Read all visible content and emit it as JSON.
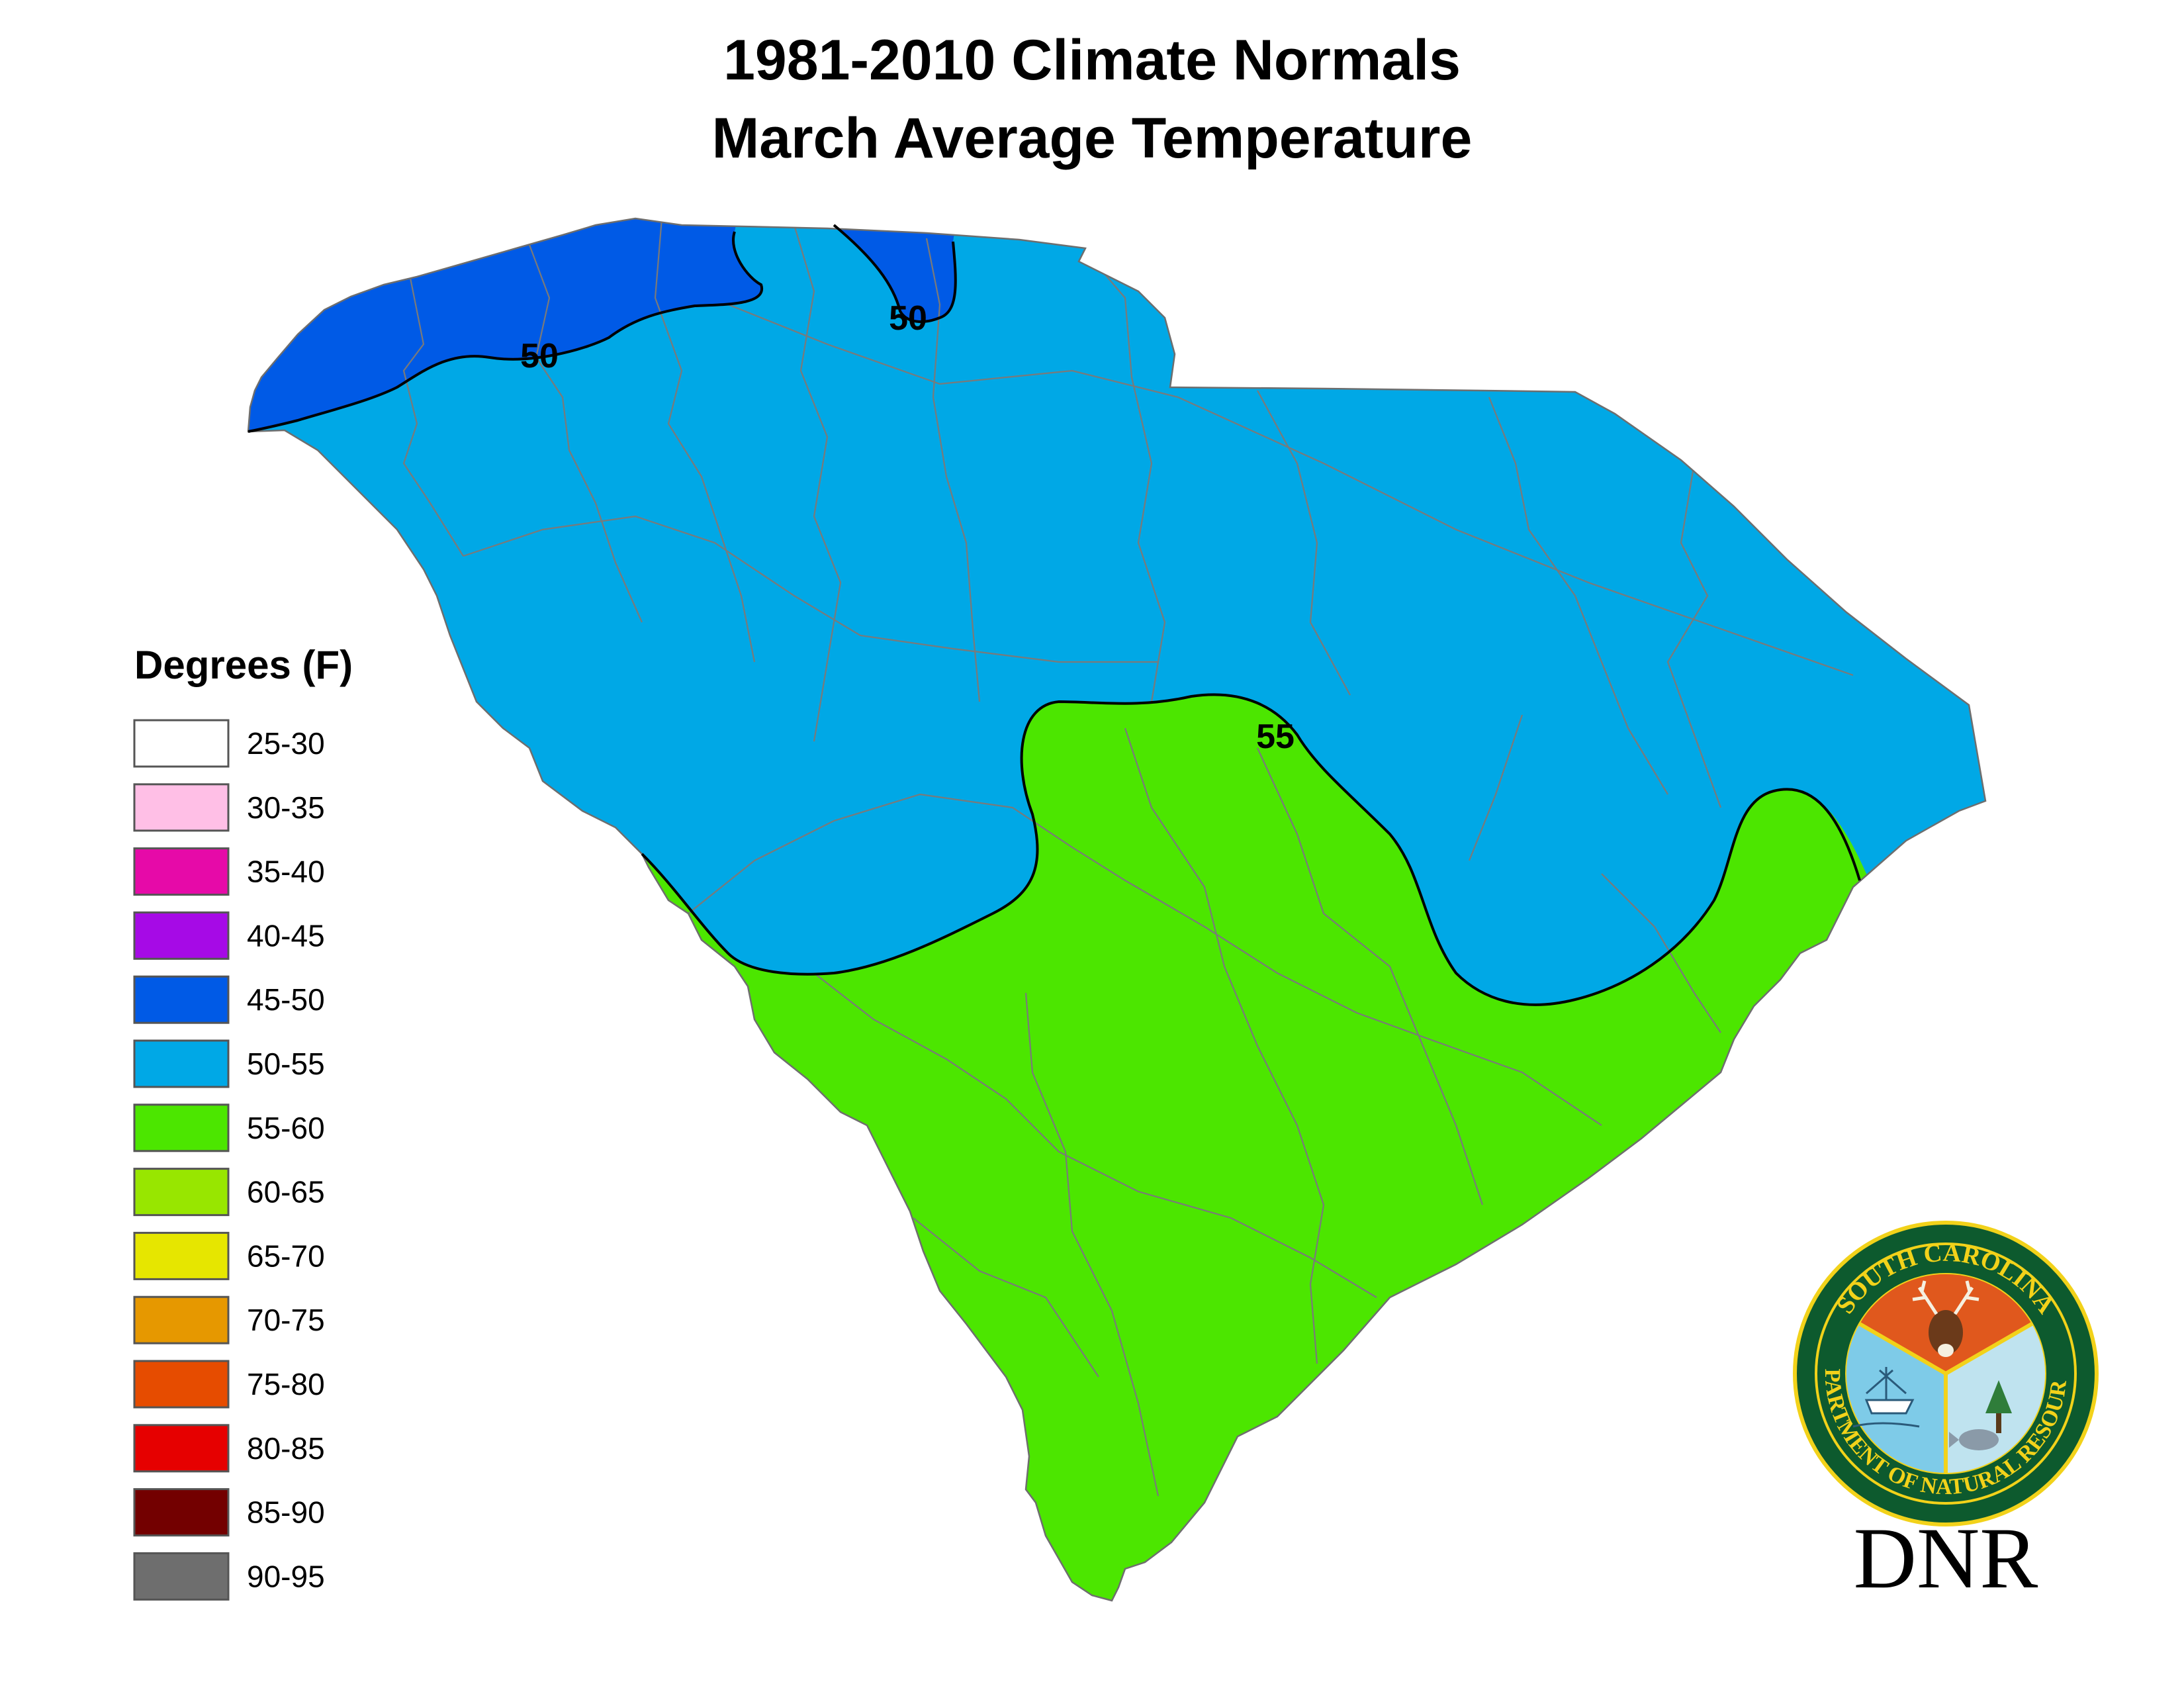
{
  "title": {
    "line1": "1981-2010 Climate Normals",
    "line2": "March Average Temperature"
  },
  "legend": {
    "title": "Degrees (F)",
    "items": [
      {
        "label": "25-30",
        "color": "#ffffff"
      },
      {
        "label": "30-35",
        "color": "#ffbfe6"
      },
      {
        "label": "35-40",
        "color": "#e60aa8"
      },
      {
        "label": "40-45",
        "color": "#a60ae6"
      },
      {
        "label": "45-50",
        "color": "#005ae6"
      },
      {
        "label": "50-55",
        "color": "#00a8e6"
      },
      {
        "label": "55-60",
        "color": "#4ce600"
      },
      {
        "label": "60-65",
        "color": "#98e600"
      },
      {
        "label": "65-70",
        "color": "#e6e600"
      },
      {
        "label": "70-75",
        "color": "#e69800"
      },
      {
        "label": "75-80",
        "color": "#e64c00"
      },
      {
        "label": "80-85",
        "color": "#e60000"
      },
      {
        "label": "85-90",
        "color": "#730000"
      },
      {
        "label": "90-95",
        "color": "#6e6e6e"
      }
    ]
  },
  "contours": {
    "north_west": "50",
    "north_central": "50",
    "midlands": "55"
  },
  "map": {
    "state": "South Carolina",
    "zones_shown": [
      "45-50",
      "50-55",
      "55-60"
    ]
  },
  "logo": {
    "seal_top": "SOUTH CAROLINA",
    "seal_bottom": "DEPARTMENT OF NATURAL RESOURCES",
    "wordmark": "DNR",
    "ring_color": "#0d5a2e",
    "gold_color": "#f2d21a"
  }
}
